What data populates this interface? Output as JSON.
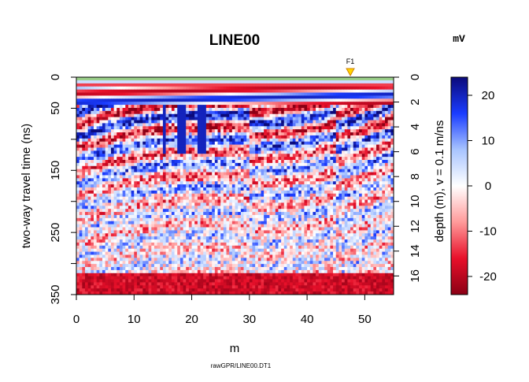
{
  "chart_data": {
    "type": "heatmap",
    "title": "LINE00",
    "xlabel": "m",
    "ylabel_left": "two-way travel time (ns)",
    "ylabel_right": "depth (m),  v = 0.1 m/ns",
    "colorbar_unit": "mV",
    "caption": "rawGPR/LINE00.DT1",
    "xlim": [
      0,
      55
    ],
    "ylim_time": [
      0,
      350
    ],
    "x_ticks": [
      "0",
      "10",
      "20",
      "30",
      "40",
      "50"
    ],
    "y_ticks_left": [
      "0",
      "50",
      "150",
      "250",
      "350"
    ],
    "y_ticks_left_values": [
      0,
      50,
      150,
      250,
      350
    ],
    "y_ticks_right": [
      "0",
      "2",
      "4",
      "6",
      "8",
      "10",
      "12",
      "14",
      "16"
    ],
    "y_ticks_right_values": [
      0,
      2,
      4,
      6,
      8,
      10,
      12,
      14,
      16
    ],
    "colorbar_range": [
      -24,
      24
    ],
    "colorbar_ticks": [
      "20",
      "10",
      "0",
      "-10",
      "-20"
    ],
    "colorbar_tick_values": [
      20,
      10,
      0,
      -10,
      -20
    ],
    "colormap": [
      "#8b0015",
      "#e8102a",
      "#ff9a9a",
      "#ffffff",
      "#a8c4ff",
      "#1a3cff",
      "#0b0a7a"
    ],
    "fiducial": {
      "label": "F1",
      "x": 47.5,
      "color": "#ffd400"
    },
    "surface_line_color": "#9bcf8a",
    "velocity_m_per_ns": 0.1
  }
}
